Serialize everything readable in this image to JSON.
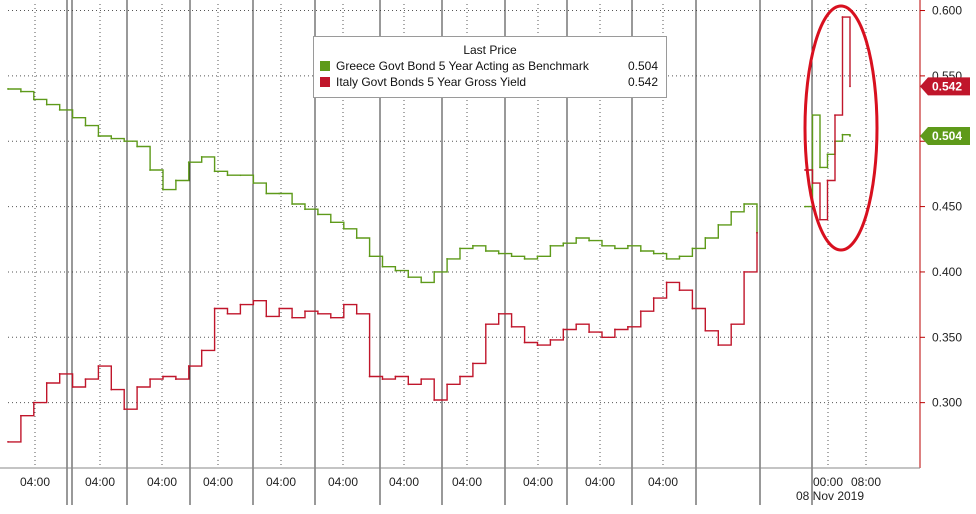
{
  "chart_data": {
    "type": "line",
    "legend": {
      "title": "Last Price",
      "placement": "top-center"
    },
    "ylim": [
      0.25,
      0.605
    ],
    "y_ticks": [
      "0.300",
      "0.350",
      "0.400",
      "0.450",
      "0.500",
      "0.550",
      "0.600"
    ],
    "y_tick_values": [
      0.3,
      0.35,
      0.4,
      0.45,
      0.5,
      0.55,
      0.6
    ],
    "grid": true,
    "x_tick_labels": [
      "04:00",
      "04:00",
      "04:00",
      "04:00",
      "04:00",
      "04:00",
      "04:00",
      "04:00",
      "04:00",
      "04:00",
      "04:00",
      "00:00",
      "08:00"
    ],
    "date_label": "08 Nov 2019",
    "annotation": "red ellipse highlighting the 08 Nov 2019 spike",
    "series": [
      {
        "name": "Greece Govt Bond 5 Year Acting as Benchmark",
        "last_value": "0.504",
        "color": "#5e9a1a",
        "values": [
          0.54,
          0.538,
          0.532,
          0.528,
          0.524,
          0.518,
          0.512,
          0.504,
          0.502,
          0.5,
          0.496,
          0.478,
          0.463,
          0.47,
          0.484,
          0.488,
          0.477,
          0.474,
          0.474,
          0.468,
          0.46,
          0.46,
          0.452,
          0.448,
          0.444,
          0.438,
          0.433,
          0.426,
          0.412,
          0.404,
          0.401,
          0.396,
          0.392,
          0.4,
          0.41,
          0.418,
          0.42,
          0.416,
          0.414,
          0.412,
          0.41,
          0.412,
          0.42,
          0.422,
          0.426,
          0.424,
          0.42,
          0.418,
          0.42,
          0.416,
          0.414,
          0.41,
          0.412,
          0.418,
          0.426,
          0.436,
          0.446,
          0.452,
          0.43,
          0.45,
          0.52,
          0.48,
          0.49,
          0.5,
          0.505,
          0.504
        ]
      },
      {
        "name": "Italy Govt Bonds 5 Year Gross Yield",
        "last_value": "0.542",
        "color": "#c0162b",
        "values": [
          0.27,
          0.29,
          0.3,
          0.315,
          0.322,
          0.312,
          0.318,
          0.328,
          0.31,
          0.295,
          0.312,
          0.318,
          0.32,
          0.318,
          0.328,
          0.34,
          0.372,
          0.368,
          0.375,
          0.378,
          0.366,
          0.372,
          0.365,
          0.37,
          0.368,
          0.365,
          0.375,
          0.368,
          0.32,
          0.318,
          0.32,
          0.314,
          0.318,
          0.302,
          0.314,
          0.32,
          0.33,
          0.36,
          0.368,
          0.358,
          0.346,
          0.344,
          0.348,
          0.356,
          0.36,
          0.354,
          0.35,
          0.356,
          0.358,
          0.37,
          0.38,
          0.392,
          0.386,
          0.372,
          0.355,
          0.344,
          0.36,
          0.4,
          0.43,
          0.478,
          0.468,
          0.44,
          0.47,
          0.52,
          0.595,
          0.542
        ]
      }
    ]
  }
}
